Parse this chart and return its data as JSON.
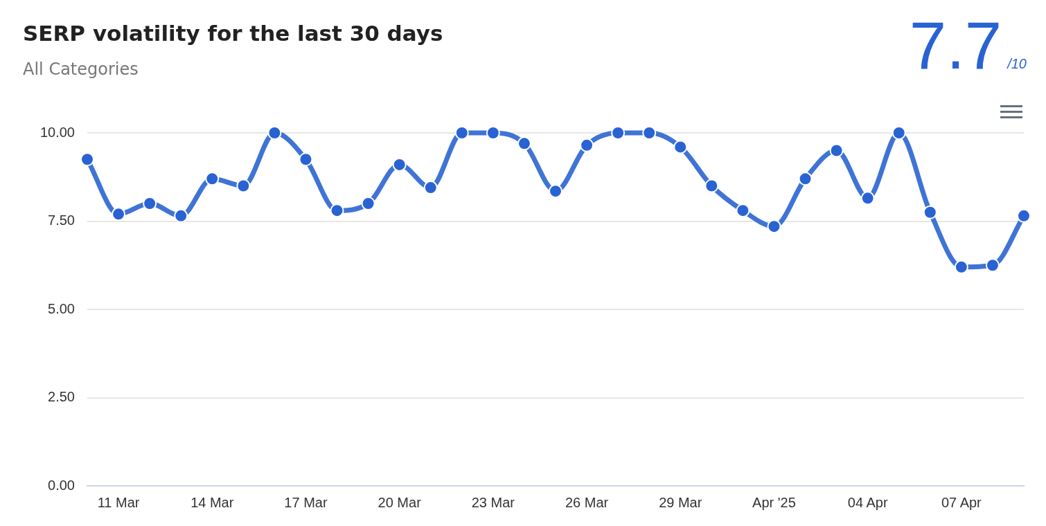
{
  "chart_data": {
    "type": "line",
    "title": "SERP volatility for the last 30 days",
    "subtitle": "All Categories",
    "annotations": [
      "7.7",
      "/10"
    ],
    "x": [
      "2025-03-10",
      "2025-03-11",
      "2025-03-12",
      "2025-03-13",
      "2025-03-14",
      "2025-03-15",
      "2025-03-16",
      "2025-03-17",
      "2025-03-18",
      "2025-03-19",
      "2025-03-20",
      "2025-03-21",
      "2025-03-22",
      "2025-03-23",
      "2025-03-24",
      "2025-03-25",
      "2025-03-26",
      "2025-03-27",
      "2025-03-28",
      "2025-03-29",
      "2025-03-30",
      "2025-03-31",
      "2025-04-01",
      "2025-04-02",
      "2025-04-03",
      "2025-04-04",
      "2025-04-05",
      "2025-04-06",
      "2025-04-07",
      "2025-04-08",
      "2025-04-09"
    ],
    "series": [
      {
        "color": "#3f74d6",
        "values": [
          9.25,
          7.7,
          8.0,
          7.65,
          8.7,
          8.5,
          10,
          9.25,
          7.8,
          8.0,
          9.1,
          8.45,
          10,
          10,
          9.7,
          8.35,
          9.65,
          10,
          10,
          9.6,
          8.5,
          7.8,
          7.35,
          8.7,
          9.5,
          8.15,
          10,
          7.75,
          6.2,
          6.25,
          7.65
        ]
      }
    ],
    "xlim": [
      "2025-03-10",
      "2025-04-09"
    ],
    "xticks": [
      {
        "value": "2025-03-11",
        "label": "11 Mar"
      },
      {
        "value": "2025-03-14",
        "label": "14 Mar"
      },
      {
        "value": "2025-03-17",
        "label": "17 Mar"
      },
      {
        "value": "2025-03-20",
        "label": "20 Mar"
      },
      {
        "value": "2025-03-23",
        "label": "23 Mar"
      },
      {
        "value": "2025-03-26",
        "label": "26 Mar"
      },
      {
        "value": "2025-03-29",
        "label": "29 Mar"
      },
      {
        "value": "2025-04-01",
        "label": "Apr '25"
      },
      {
        "value": "2025-04-04",
        "label": "04 Apr"
      },
      {
        "value": "2025-04-07",
        "label": "07 Apr"
      }
    ],
    "ylim": [
      0,
      10
    ],
    "yticks": [
      {
        "value": 0,
        "label": "0.00"
      },
      {
        "value": 2.5,
        "label": "2.50"
      },
      {
        "value": 5,
        "label": "5.00"
      },
      {
        "value": 7.5,
        "label": "7.50"
      },
      {
        "value": 10,
        "label": "10.00"
      }
    ],
    "grid": "y",
    "legend": false,
    "marker": "circle",
    "line_style": "solid"
  }
}
